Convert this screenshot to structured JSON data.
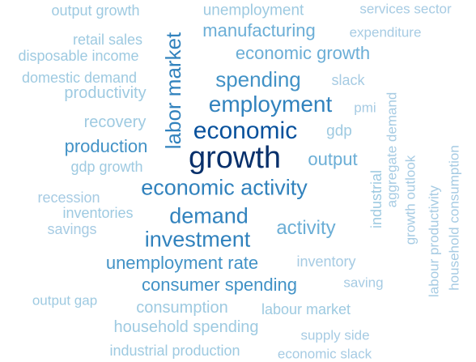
{
  "words": [
    {
      "text": "output growth",
      "color": "#9ecae1"
    },
    {
      "text": "unemployment",
      "color": "#9ecae1"
    },
    {
      "text": "services sector",
      "color": "#a6cbe3"
    },
    {
      "text": "retail sales",
      "color": "#9ecae1"
    },
    {
      "text": "manufacturing",
      "color": "#6baed6"
    },
    {
      "text": "expenditure",
      "color": "#a6cbe3"
    },
    {
      "text": "disposable income",
      "color": "#9ecae1"
    },
    {
      "text": "economic growth",
      "color": "#6baed6"
    },
    {
      "text": "domestic demand",
      "color": "#9ecae1"
    },
    {
      "text": "spending",
      "color": "#4292c6"
    },
    {
      "text": "slack",
      "color": "#a6cbe3"
    },
    {
      "text": "productivity",
      "color": "#9ecae1"
    },
    {
      "text": "employment",
      "color": "#3182bd"
    },
    {
      "text": "pmi",
      "color": "#a6cbe3"
    },
    {
      "text": "recovery",
      "color": "#9ecae1"
    },
    {
      "text": "economic",
      "color": "#08519c"
    },
    {
      "text": "gdp",
      "color": "#9ecae1"
    },
    {
      "text": "production",
      "color": "#4292c6"
    },
    {
      "text": "growth",
      "color": "#08306b"
    },
    {
      "text": "output",
      "color": "#6baed6"
    },
    {
      "text": "gdp growth",
      "color": "#9ecae1"
    },
    {
      "text": "economic activity",
      "color": "#3182bd"
    },
    {
      "text": "recession",
      "color": "#a6cbe3"
    },
    {
      "text": "inventories",
      "color": "#9ecae1"
    },
    {
      "text": "demand",
      "color": "#3182bd"
    },
    {
      "text": "savings",
      "color": "#a6cbe3"
    },
    {
      "text": "activity",
      "color": "#6baed6"
    },
    {
      "text": "investment",
      "color": "#3182bd"
    },
    {
      "text": "unemployment rate",
      "color": "#4292c6"
    },
    {
      "text": "inventory",
      "color": "#a6cbe3"
    },
    {
      "text": "consumer spending",
      "color": "#4292c6"
    },
    {
      "text": "saving",
      "color": "#a6cbe3"
    },
    {
      "text": "output gap",
      "color": "#9ecae1"
    },
    {
      "text": "consumption",
      "color": "#9ecae1"
    },
    {
      "text": "labour market",
      "color": "#9ecae1"
    },
    {
      "text": "household spending",
      "color": "#9ecae1"
    },
    {
      "text": "supply side",
      "color": "#a6cbe3"
    },
    {
      "text": "industrial production",
      "color": "#9ecae1"
    },
    {
      "text": "economic slack",
      "color": "#a6cbe3"
    },
    {
      "text": "labor market",
      "color": "#3182bd"
    },
    {
      "text": "industrial",
      "color": "#9ecae1"
    },
    {
      "text": "aggregate demand",
      "color": "#a6cbe3"
    },
    {
      "text": "growth outlook",
      "color": "#a6cbe3"
    },
    {
      "text": "labour productivity",
      "color": "#a6cbe3"
    },
    {
      "text": "household consumption",
      "color": "#a6cbe3"
    }
  ]
}
